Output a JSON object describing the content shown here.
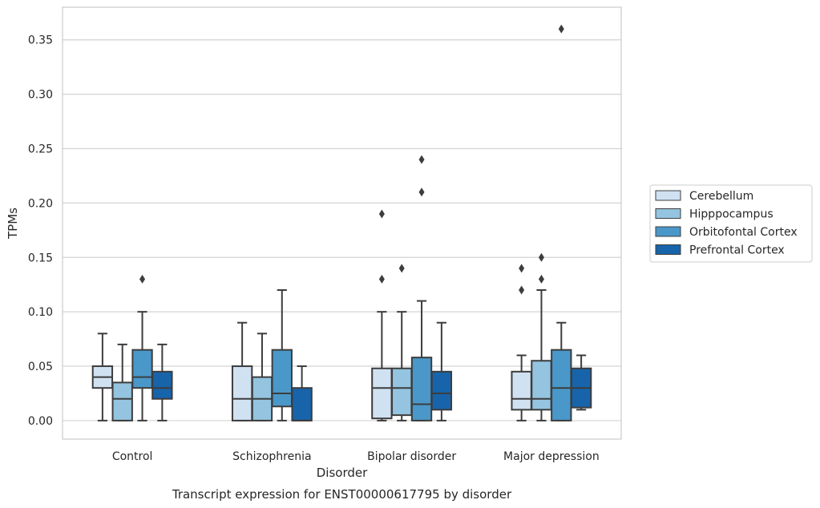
{
  "chart_data": {
    "type": "box",
    "caption": "Transcript expression for ENST00000617795 by disorder",
    "xlabel": "Disorder",
    "ylabel": "TPMs",
    "ylim": [
      -0.017,
      0.38
    ],
    "yticks": [
      "0.00",
      "0.05",
      "0.10",
      "0.15",
      "0.20",
      "0.25",
      "0.30",
      "0.35"
    ],
    "grid": "horizontal",
    "legend_position": "right",
    "categories": [
      "Control",
      "Schizophrenia",
      "Bipolar disorder",
      "Major depression"
    ],
    "series": [
      {
        "name": "Cerebellum",
        "color": "#d0e1f2",
        "boxes": [
          {
            "whislo": 0.0,
            "q1": 0.03,
            "med": 0.04,
            "q3": 0.05,
            "whishi": 0.08,
            "fliers": []
          },
          {
            "whislo": 0.0,
            "q1": 0.0,
            "med": 0.02,
            "q3": 0.05,
            "whishi": 0.09,
            "fliers": []
          },
          {
            "whislo": 0.0,
            "q1": 0.002,
            "med": 0.03,
            "q3": 0.048,
            "whishi": 0.1,
            "fliers": [
              0.13,
              0.19
            ]
          },
          {
            "whislo": 0.0,
            "q1": 0.01,
            "med": 0.02,
            "q3": 0.045,
            "whishi": 0.06,
            "fliers": [
              0.12,
              0.14
            ]
          }
        ]
      },
      {
        "name": "Hipppocampus",
        "color": "#94c4df",
        "boxes": [
          {
            "whislo": 0.0,
            "q1": 0.0,
            "med": 0.02,
            "q3": 0.035,
            "whishi": 0.07,
            "fliers": []
          },
          {
            "whislo": 0.0,
            "q1": 0.0,
            "med": 0.02,
            "q3": 0.04,
            "whishi": 0.08,
            "fliers": []
          },
          {
            "whislo": 0.0,
            "q1": 0.005,
            "med": 0.03,
            "q3": 0.048,
            "whishi": 0.1,
            "fliers": [
              0.14
            ]
          },
          {
            "whislo": 0.0,
            "q1": 0.01,
            "med": 0.02,
            "q3": 0.055,
            "whishi": 0.12,
            "fliers": [
              0.13,
              0.15
            ]
          }
        ]
      },
      {
        "name": "Orbitofontal Cortex",
        "color": "#4a98c9",
        "boxes": [
          {
            "whislo": 0.0,
            "q1": 0.03,
            "med": 0.04,
            "q3": 0.065,
            "whishi": 0.1,
            "fliers": [
              0.13
            ]
          },
          {
            "whislo": 0.0,
            "q1": 0.013,
            "med": 0.025,
            "q3": 0.065,
            "whishi": 0.12,
            "fliers": []
          },
          {
            "whislo": 0.0,
            "q1": 0.0,
            "med": 0.015,
            "q3": 0.058,
            "whishi": 0.11,
            "fliers": [
              0.21,
              0.24
            ]
          },
          {
            "whislo": 0.0,
            "q1": 0.0,
            "med": 0.03,
            "q3": 0.065,
            "whishi": 0.09,
            "fliers": [
              0.36
            ]
          }
        ]
      },
      {
        "name": "Prefrontal Cortex",
        "color": "#1764ab",
        "boxes": [
          {
            "whislo": 0.0,
            "q1": 0.02,
            "med": 0.03,
            "q3": 0.045,
            "whishi": 0.07,
            "fliers": []
          },
          {
            "whislo": 0.0,
            "q1": 0.0,
            "med": 0.0,
            "q3": 0.03,
            "whishi": 0.05,
            "fliers": []
          },
          {
            "whislo": 0.0,
            "q1": 0.01,
            "med": 0.025,
            "q3": 0.045,
            "whishi": 0.09,
            "fliers": []
          },
          {
            "whislo": 0.01,
            "q1": 0.012,
            "med": 0.03,
            "q3": 0.048,
            "whishi": 0.06,
            "fliers": []
          }
        ]
      }
    ]
  }
}
